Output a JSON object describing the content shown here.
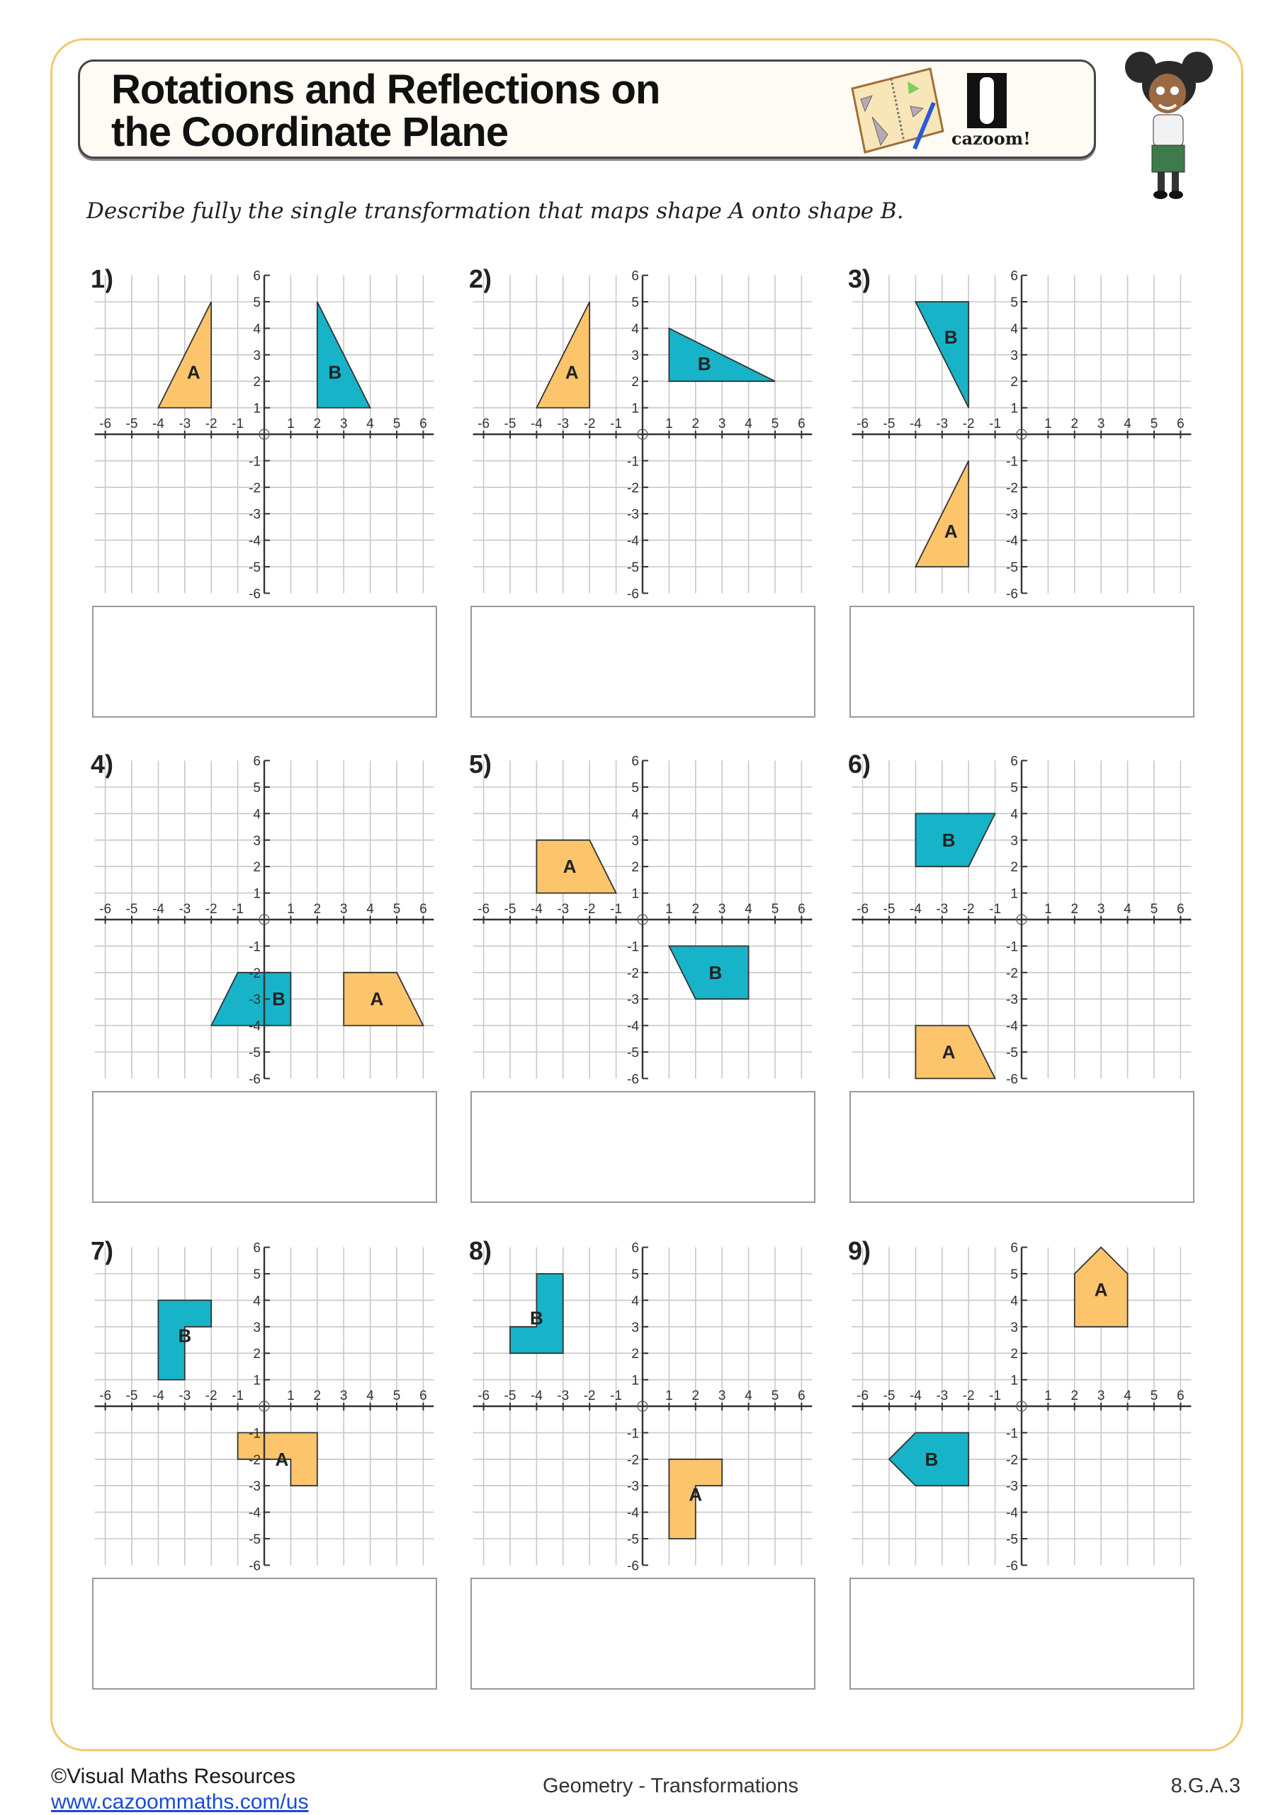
{
  "header": {
    "title_line1": "Rotations and Reflections on",
    "title_line2": "the Coordinate Plane",
    "logo_text": "cazoom!"
  },
  "instruction": "Describe fully the single transformation that maps shape A onto shape B.",
  "colors": {
    "shape_a": "#fcc56c",
    "shape_b": "#17b3c9",
    "frame": "#f5c76e",
    "link": "#1a4ad8"
  },
  "grid": {
    "xlim": [
      -6,
      6
    ],
    "ylim": [
      -6,
      6
    ],
    "x_ticks": [
      -6,
      -5,
      -4,
      -3,
      -2,
      -1,
      1,
      2,
      3,
      4,
      5,
      6
    ],
    "y_ticks": [
      -6,
      -5,
      -4,
      -3,
      -2,
      -1,
      1,
      2,
      3,
      4,
      5,
      6
    ]
  },
  "problems": [
    {
      "number": "1)",
      "shapes": [
        {
          "label": "A",
          "points": [
            [
              -4,
              1
            ],
            [
              -2,
              1
            ],
            [
              -2,
              5
            ]
          ]
        },
        {
          "label": "B",
          "points": [
            [
              2,
              1
            ],
            [
              4,
              1
            ],
            [
              2,
              5
            ]
          ]
        }
      ]
    },
    {
      "number": "2)",
      "shapes": [
        {
          "label": "A",
          "points": [
            [
              -4,
              1
            ],
            [
              -2,
              1
            ],
            [
              -2,
              5
            ]
          ]
        },
        {
          "label": "B",
          "points": [
            [
              1,
              2
            ],
            [
              1,
              4
            ],
            [
              5,
              2
            ]
          ]
        }
      ]
    },
    {
      "number": "3)",
      "shapes": [
        {
          "label": "A",
          "points": [
            [
              -4,
              -5
            ],
            [
              -2,
              -5
            ],
            [
              -2,
              -1
            ]
          ]
        },
        {
          "label": "B",
          "points": [
            [
              -4,
              5
            ],
            [
              -2,
              5
            ],
            [
              -2,
              1
            ]
          ]
        }
      ]
    },
    {
      "number": "4)",
      "shapes": [
        {
          "label": "A",
          "points": [
            [
              3,
              -2
            ],
            [
              5,
              -2
            ],
            [
              6,
              -4
            ],
            [
              3,
              -4
            ]
          ]
        },
        {
          "label": "B",
          "points": [
            [
              -1,
              -2
            ],
            [
              1,
              -2
            ],
            [
              1,
              -4
            ],
            [
              -2,
              -4
            ]
          ]
        }
      ]
    },
    {
      "number": "5)",
      "shapes": [
        {
          "label": "A",
          "points": [
            [
              -4,
              1
            ],
            [
              -4,
              3
            ],
            [
              -2,
              3
            ],
            [
              -1,
              1
            ]
          ]
        },
        {
          "label": "B",
          "points": [
            [
              1,
              -1
            ],
            [
              4,
              -1
            ],
            [
              4,
              -3
            ],
            [
              2,
              -3
            ]
          ]
        }
      ]
    },
    {
      "number": "6)",
      "shapes": [
        {
          "label": "A",
          "points": [
            [
              -4,
              -4
            ],
            [
              -2,
              -4
            ],
            [
              -1,
              -6
            ],
            [
              -4,
              -6
            ]
          ]
        },
        {
          "label": "B",
          "points": [
            [
              -4,
              2
            ],
            [
              -4,
              4
            ],
            [
              -1,
              4
            ],
            [
              -2,
              2
            ]
          ]
        }
      ]
    },
    {
      "number": "7)",
      "shapes": [
        {
          "label": "A",
          "points": [
            [
              -1,
              -1
            ],
            [
              2,
              -1
            ],
            [
              2,
              -3
            ],
            [
              1,
              -3
            ],
            [
              1,
              -2
            ],
            [
              -1,
              -2
            ]
          ]
        },
        {
          "label": "B",
          "points": [
            [
              -4,
              1
            ],
            [
              -4,
              4
            ],
            [
              -2,
              4
            ],
            [
              -2,
              3
            ],
            [
              -3,
              3
            ],
            [
              -3,
              1
            ]
          ]
        }
      ]
    },
    {
      "number": "8)",
      "shapes": [
        {
          "label": "A",
          "points": [
            [
              1,
              -2
            ],
            [
              3,
              -2
            ],
            [
              3,
              -3
            ],
            [
              2,
              -3
            ],
            [
              2,
              -5
            ],
            [
              1,
              -5
            ]
          ]
        },
        {
          "label": "B",
          "points": [
            [
              -5,
              2
            ],
            [
              -5,
              3
            ],
            [
              -4,
              3
            ],
            [
              -4,
              5
            ],
            [
              -3,
              5
            ],
            [
              -3,
              2
            ]
          ]
        }
      ]
    },
    {
      "number": "9)",
      "shapes": [
        {
          "label": "A",
          "points": [
            [
              2,
              3
            ],
            [
              2,
              5
            ],
            [
              3,
              6
            ],
            [
              4,
              5
            ],
            [
              4,
              3
            ]
          ]
        },
        {
          "label": "B",
          "points": [
            [
              -2,
              -1
            ],
            [
              -4,
              -1
            ],
            [
              -5,
              -2
            ],
            [
              -4,
              -3
            ],
            [
              -2,
              -3
            ]
          ]
        }
      ]
    }
  ],
  "footer": {
    "copyright": "©Visual Maths Resources",
    "link": "www.cazoommaths.com/us",
    "topic": "Geometry - Transformations",
    "standard": "8.G.A.3"
  }
}
